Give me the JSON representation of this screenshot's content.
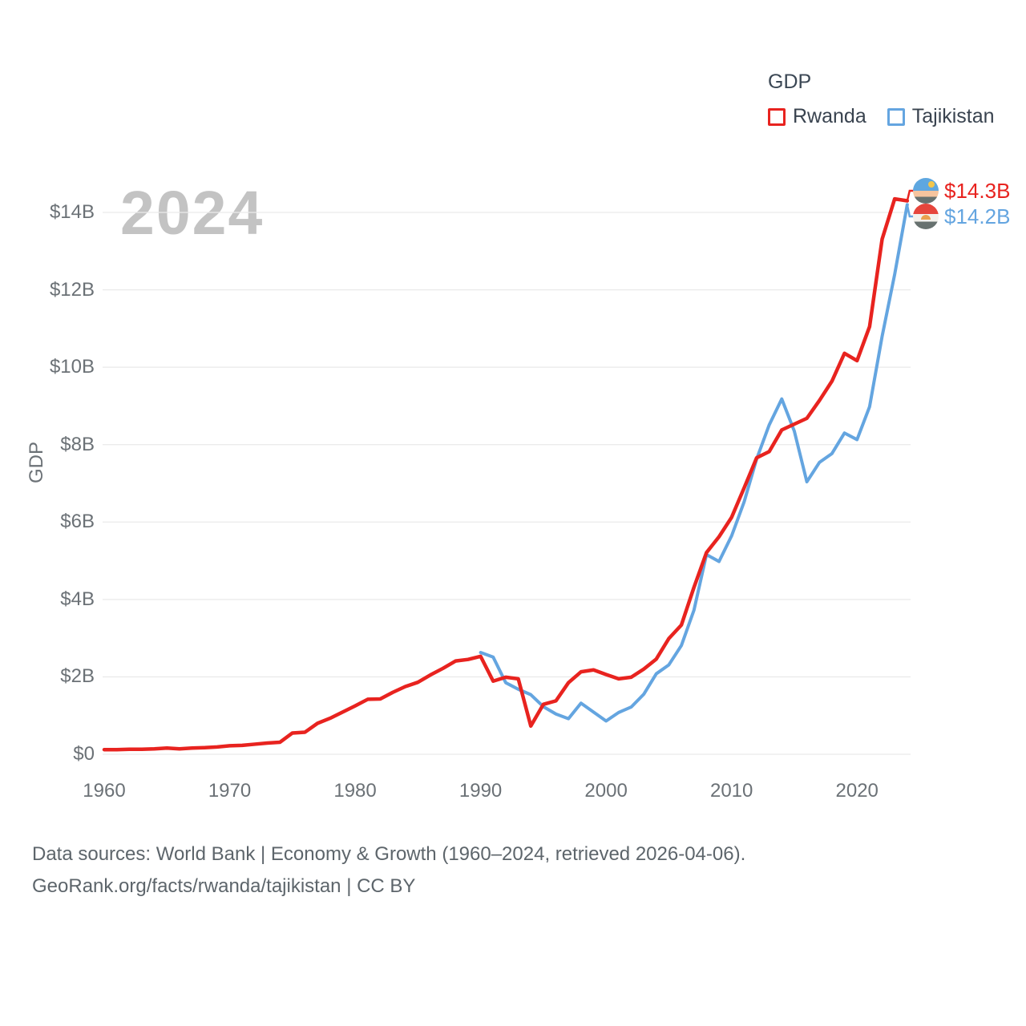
{
  "legend": {
    "title": "GDP",
    "series": [
      {
        "label": "Rwanda",
        "color": "#e8231f"
      },
      {
        "label": "Tajikistan",
        "color": "#64a5e0"
      }
    ]
  },
  "watermark": "2024",
  "y_axis": {
    "title": "GDP",
    "tick_labels": [
      "$0",
      "$2B",
      "$4B",
      "$6B",
      "$8B",
      "$10B",
      "$12B",
      "$14B"
    ]
  },
  "x_axis": {
    "tick_labels": [
      "1960",
      "1970",
      "1980",
      "1990",
      "2000",
      "2010",
      "2020"
    ]
  },
  "end_labels": [
    {
      "series": "Rwanda",
      "flag": "rwanda-flag-icon",
      "value": "$14.3B",
      "color": "#e8231f"
    },
    {
      "series": "Tajikistan",
      "flag": "tajikistan-flag-icon",
      "value": "$14.2B",
      "color": "#64a5e0"
    }
  ],
  "footer": {
    "line1": "Data sources: World Bank | Economy & Growth (1960–2024, retrieved 2026-04-06).",
    "line2": "GeoRank.org/facts/rwanda/tajikistan | CC BY"
  },
  "chart_data": {
    "type": "line",
    "title": "GDP",
    "xlabel": "",
    "ylabel": "GDP",
    "xlim": [
      1960,
      2024
    ],
    "ylim": [
      0,
      15
    ],
    "y_ticks": [
      0,
      2,
      4,
      6,
      8,
      10,
      12,
      14
    ],
    "x_ticks": [
      1960,
      1970,
      1980,
      1990,
      2000,
      2010,
      2020
    ],
    "grid": true,
    "legend_position": "top-right",
    "units": "billions USD",
    "series": [
      {
        "name": "Rwanda",
        "key": "rwanda",
        "color": "#e8231f",
        "start_year": 1960,
        "x_interval": 1,
        "end_label": "$14.3B",
        "values": [
          0.12,
          0.12,
          0.13,
          0.13,
          0.14,
          0.16,
          0.14,
          0.16,
          0.17,
          0.19,
          0.22,
          0.23,
          0.26,
          0.29,
          0.31,
          0.55,
          0.57,
          0.8,
          0.93,
          1.09,
          1.25,
          1.42,
          1.43,
          1.6,
          1.75,
          1.86,
          2.05,
          2.22,
          2.41,
          2.45,
          2.53,
          1.89,
          1.99,
          1.95,
          0.73,
          1.29,
          1.38,
          1.85,
          2.13,
          2.18,
          2.06,
          1.95,
          1.99,
          2.2,
          2.46,
          2.99,
          3.34,
          4.31,
          5.21,
          5.62,
          6.12,
          6.88,
          7.66,
          7.82,
          8.38,
          8.53,
          8.68,
          9.14,
          9.64,
          10.36,
          10.17,
          11.05,
          13.31,
          14.35,
          14.3
        ]
      },
      {
        "name": "Tajikistan",
        "key": "tajikistan",
        "color": "#64a5e0",
        "start_year": 1990,
        "x_interval": 1,
        "end_label": "$14.2B",
        "values": [
          2.63,
          2.51,
          1.85,
          1.68,
          1.54,
          1.23,
          1.04,
          0.92,
          1.32,
          1.09,
          0.86,
          1.08,
          1.22,
          1.55,
          2.08,
          2.31,
          2.81,
          3.72,
          5.16,
          4.98,
          5.64,
          6.52,
          7.63,
          8.51,
          9.18,
          8.35,
          7.04,
          7.54,
          7.77,
          8.3,
          8.13,
          8.98,
          10.8,
          12.4,
          14.2
        ]
      }
    ]
  }
}
